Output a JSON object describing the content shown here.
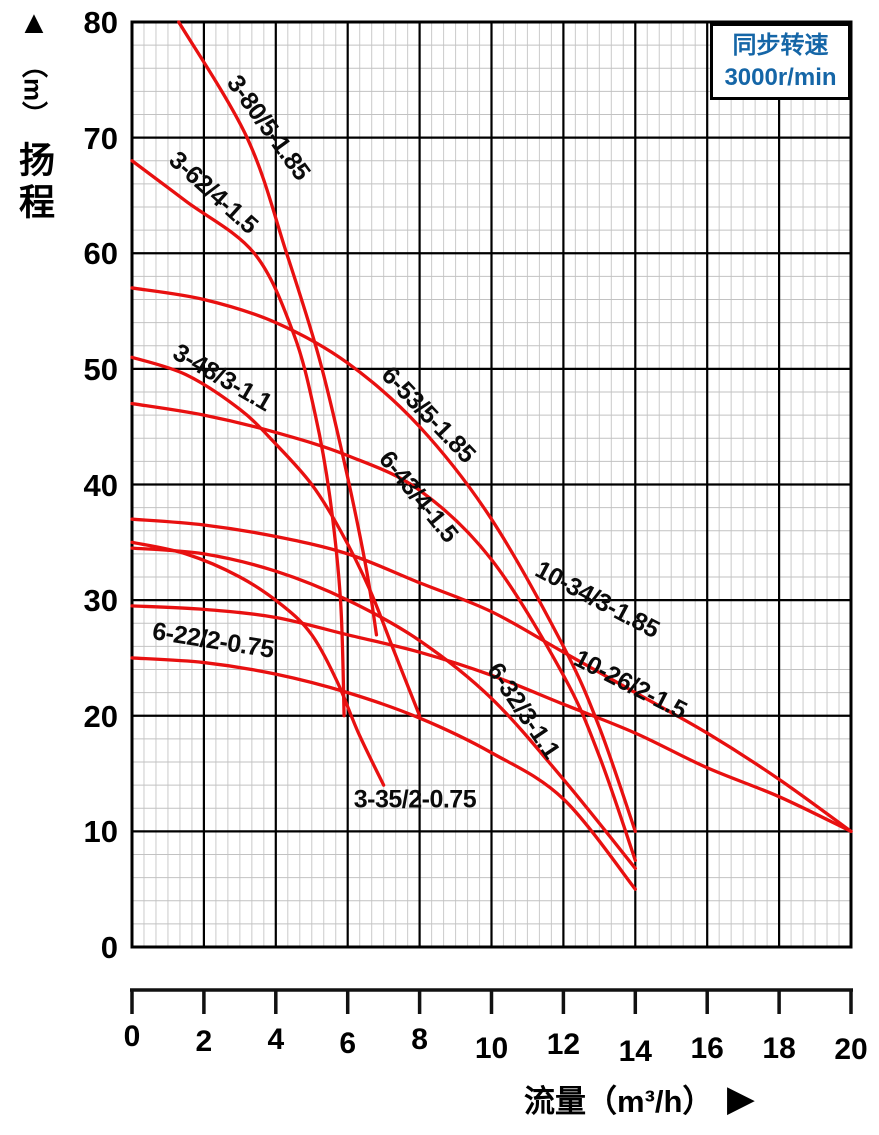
{
  "chart_data": {
    "type": "line",
    "title": "",
    "legend": {
      "line1": "同步转速",
      "line2": "3000r/min",
      "text_color": "#1566a7",
      "position": "top-right"
    },
    "x_axis": {
      "name": "流量（m³/h）",
      "arrow": "▶",
      "min": 0,
      "max": 20,
      "ticks": [
        0,
        2,
        4,
        6,
        8,
        10,
        12,
        14,
        16,
        18,
        20
      ]
    },
    "y_axis": {
      "name": "扬程",
      "unit": "（m）",
      "arrow": "▲",
      "min": 0,
      "max": 80,
      "ticks": [
        80,
        70,
        60,
        50,
        40,
        30,
        20,
        10,
        0
      ]
    },
    "grid": {
      "major": true,
      "minor": true,
      "minor_x_step": 0.3333,
      "minor_y_step": 2
    },
    "colors": {
      "curve": "#e81010",
      "major_grid": "#000000",
      "minor_grid_v": "#cfcfcf",
      "minor_grid_h": "#c2c2c2",
      "background": "#ffffff"
    },
    "series": [
      {
        "label": "3-80/5-1.85",
        "points": [
          [
            1.3,
            80
          ],
          [
            3.2,
            70
          ],
          [
            4.3,
            60
          ],
          [
            5.2,
            51
          ],
          [
            5.9,
            42
          ],
          [
            6.5,
            33
          ],
          [
            6.8,
            27
          ]
        ],
        "label_pos": [
          3.78,
          70.8
        ],
        "label_rot": 54
      },
      {
        "label": "3-62/4-1.5",
        "points": [
          [
            0,
            68
          ],
          [
            1.5,
            64.5
          ],
          [
            3.4,
            60
          ],
          [
            4.5,
            53
          ],
          [
            5.1,
            46
          ],
          [
            5.5,
            39
          ],
          [
            5.8,
            30
          ],
          [
            5.9,
            20
          ]
        ],
        "label_pos": [
          2.25,
          65.2
        ],
        "label_rot": 42
      },
      {
        "label": "3-48/3-1.1",
        "points": [
          [
            0,
            51
          ],
          [
            1.5,
            49.5
          ],
          [
            3,
            46.5
          ],
          [
            4,
            43.5
          ],
          [
            5,
            40
          ],
          [
            5.8,
            36
          ],
          [
            6.6,
            31
          ],
          [
            7.3,
            25.5
          ],
          [
            8,
            20
          ]
        ],
        "label_pos": [
          2.5,
          49.2
        ],
        "label_rot": 30
      },
      {
        "label": "3-35/2-0.75",
        "points": [
          [
            0,
            35
          ],
          [
            1.5,
            34
          ],
          [
            3,
            32
          ],
          [
            4.2,
            29.5
          ],
          [
            5,
            27
          ],
          [
            5.7,
            23
          ],
          [
            6.3,
            18.5
          ],
          [
            7,
            14
          ]
        ],
        "label_pos": [
          7.87,
          12.7
        ],
        "label_rot": 0
      },
      {
        "label": "6-53/5-1.85",
        "points": [
          [
            0,
            57
          ],
          [
            2,
            56
          ],
          [
            4,
            54
          ],
          [
            6,
            50.5
          ],
          [
            8,
            45
          ],
          [
            10,
            37
          ],
          [
            12,
            26
          ],
          [
            13,
            19
          ],
          [
            14,
            10
          ]
        ],
        "label_pos": [
          8.23,
          46.0
        ],
        "label_rot": 46
      },
      {
        "label": "6-43/4-1.5",
        "points": [
          [
            0,
            47
          ],
          [
            2,
            46
          ],
          [
            4,
            44.5
          ],
          [
            6,
            42.5
          ],
          [
            8,
            39.5
          ],
          [
            10,
            33.5
          ],
          [
            12,
            23.5
          ],
          [
            13,
            16.5
          ],
          [
            14,
            7.5
          ]
        ],
        "label_pos": [
          7.96,
          38.9
        ],
        "label_rot": 51
      },
      {
        "label": "6-32/3-1.1",
        "points": [
          [
            0,
            34.5
          ],
          [
            2,
            34
          ],
          [
            4,
            32.5
          ],
          [
            6,
            30
          ],
          [
            8,
            26.5
          ],
          [
            10,
            21.5
          ],
          [
            12,
            14.5
          ],
          [
            14,
            6.8
          ]
        ],
        "label_pos": [
          10.88,
          20.4
        ],
        "label_rot": 56
      },
      {
        "label": "6-22/2-0.75",
        "points": [
          [
            0,
            25
          ],
          [
            2,
            24.6
          ],
          [
            4,
            23.6
          ],
          [
            6,
            22
          ],
          [
            8,
            19.8
          ],
          [
            10,
            16.8
          ],
          [
            12,
            12.8
          ],
          [
            14,
            5
          ]
        ],
        "label_pos": [
          2.25,
          26.5
        ],
        "label_rot": 9
      },
      {
        "label": "10-34/3-1.85",
        "points": [
          [
            0,
            37
          ],
          [
            2,
            36.5
          ],
          [
            4,
            35.5
          ],
          [
            6,
            34
          ],
          [
            8,
            31.5
          ],
          [
            10,
            29
          ],
          [
            12,
            25.5
          ],
          [
            14,
            22
          ],
          [
            16,
            18.5
          ],
          [
            18,
            14.5
          ],
          [
            20,
            10
          ]
        ],
        "label_pos": [
          12.93,
          30.0
        ],
        "label_rot": 28
      },
      {
        "label": "10-26/2-1.5",
        "points": [
          [
            0,
            29.5
          ],
          [
            2,
            29.2
          ],
          [
            4,
            28.5
          ],
          [
            6,
            27
          ],
          [
            8,
            25.5
          ],
          [
            10,
            23.5
          ],
          [
            12,
            21
          ],
          [
            14,
            18.5
          ],
          [
            16,
            15.5
          ],
          [
            18,
            13
          ],
          [
            20,
            10
          ]
        ],
        "label_pos": [
          13.85,
          22.7
        ],
        "label_rot": 27
      }
    ]
  }
}
